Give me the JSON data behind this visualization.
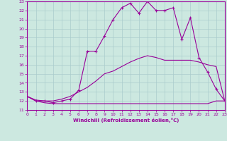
{
  "xlabel": "Windchill (Refroidissement éolien,°C)",
  "xlim": [
    0,
    23
  ],
  "ylim": [
    11,
    23
  ],
  "xticks": [
    0,
    1,
    2,
    3,
    4,
    5,
    6,
    7,
    8,
    9,
    10,
    11,
    12,
    13,
    14,
    15,
    16,
    17,
    18,
    19,
    20,
    21,
    22,
    23
  ],
  "yticks": [
    11,
    12,
    13,
    14,
    15,
    16,
    17,
    18,
    19,
    20,
    21,
    22,
    23
  ],
  "bg_color": "#cce8e0",
  "line_color": "#990099",
  "grid_color": "#aacccc",
  "line1_x": [
    0,
    1,
    2,
    3,
    4,
    5,
    6,
    7,
    8,
    9,
    10,
    11,
    12,
    13,
    14,
    15,
    16,
    17,
    18,
    19,
    20,
    21,
    22,
    23
  ],
  "line1_y": [
    12.5,
    12.0,
    11.8,
    11.7,
    11.7,
    11.7,
    11.7,
    11.7,
    11.7,
    11.7,
    11.7,
    11.7,
    11.7,
    11.7,
    11.7,
    11.7,
    11.7,
    11.7,
    11.7,
    11.7,
    11.7,
    11.7,
    12.0,
    12.0
  ],
  "line2_x": [
    0,
    1,
    2,
    3,
    4,
    5,
    6,
    7,
    8,
    9,
    10,
    11,
    12,
    13,
    14,
    15,
    16,
    17,
    18,
    19,
    20,
    21,
    22,
    23
  ],
  "line2_y": [
    12.5,
    12.1,
    12.0,
    12.0,
    12.2,
    12.5,
    13.0,
    13.5,
    14.2,
    15.0,
    15.3,
    15.8,
    16.3,
    16.7,
    17.0,
    16.8,
    16.5,
    16.5,
    16.5,
    16.5,
    16.3,
    16.0,
    15.8,
    12.0
  ],
  "line3_x": [
    0,
    1,
    2,
    3,
    4,
    5,
    6,
    7,
    8,
    9,
    10,
    11,
    12,
    13,
    14,
    15,
    16,
    17,
    18,
    19,
    20,
    21,
    22,
    23
  ],
  "line3_y": [
    12.5,
    12.0,
    12.0,
    11.8,
    12.0,
    12.2,
    13.2,
    17.5,
    17.5,
    19.2,
    21.0,
    22.3,
    22.8,
    21.7,
    23.0,
    22.0,
    22.0,
    22.3,
    18.8,
    21.2,
    16.8,
    15.2,
    13.3,
    12.0
  ]
}
